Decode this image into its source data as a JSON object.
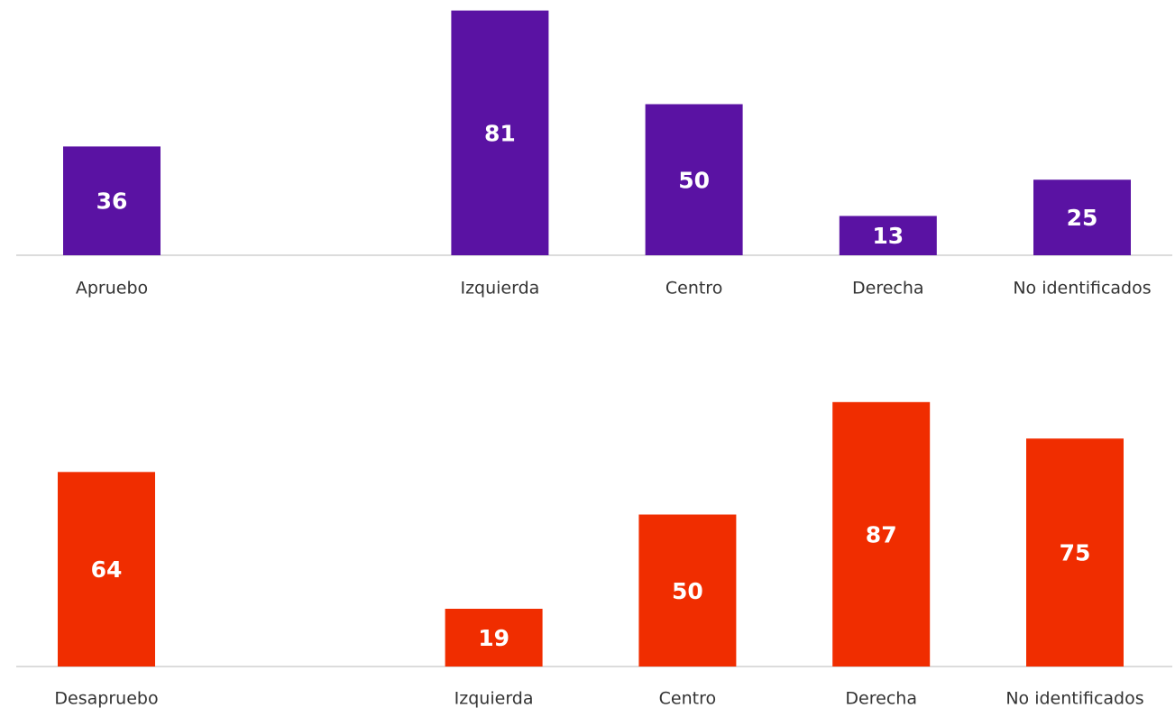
{
  "chart_data": [
    {
      "type": "bar",
      "categories": [
        "Apruebo",
        null,
        "Izquierda",
        "Centro",
        "Derecha",
        "No identificados"
      ],
      "values": [
        36,
        null,
        81,
        50,
        13,
        25
      ],
      "color": "#5a12a3"
    },
    {
      "type": "bar",
      "categories": [
        "Desapruebo",
        null,
        "Izquierda",
        "Centro",
        "Derecha",
        "No identificados"
      ],
      "values": [
        64,
        null,
        19,
        50,
        87,
        75
      ],
      "color": "#f02d00"
    }
  ]
}
